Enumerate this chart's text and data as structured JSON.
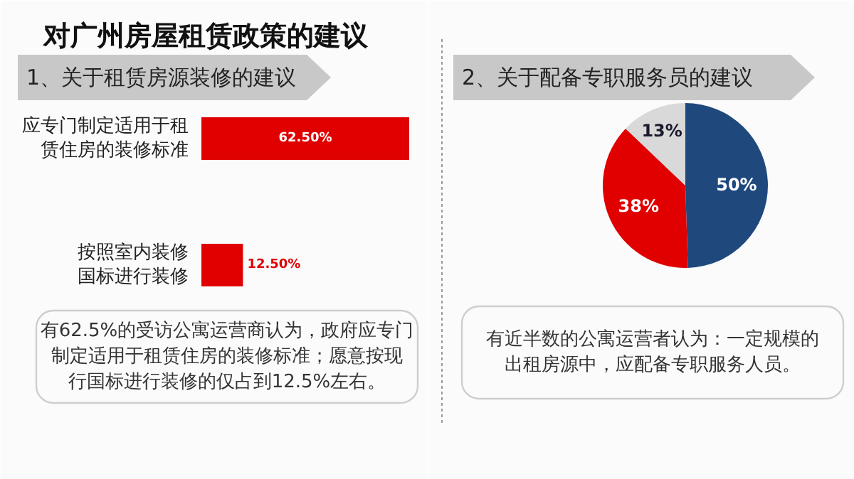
{
  "chart_data": [
    {
      "type": "bar",
      "orientation": "horizontal",
      "title": "对广州房屋租赁政策的建议",
      "subtitle": "1、关于租赁房源装修的建议",
      "categories": [
        "应专门制定适用于租赁住房的装修标准",
        "按照室内装修国标进行装修"
      ],
      "values": [
        62.5,
        12.5
      ],
      "color": "#e00000",
      "value_labels": [
        "62.50%",
        "12.50%"
      ],
      "annotations": [
        "有62.5%的受访公寓运营商认为，政府应专门制定适用于租赁住房的装修标准；愿意按现行国标进行装修的仅占到12.5%左右。"
      ]
    },
    {
      "type": "pie",
      "title": "2、关于配备专职服务员的建议",
      "categories": [
        null,
        null,
        null
      ],
      "values": [
        50,
        38,
        13
      ],
      "colors": [
        "#1f497d",
        "#e00000",
        "#d9d9d9"
      ],
      "value_labels": [
        "50%",
        "38%",
        "13%"
      ],
      "annotations": [
        "有近半数的公寓运营者认为：一定规模的出租房源中，应配备专职服务人员。"
      ]
    }
  ]
}
